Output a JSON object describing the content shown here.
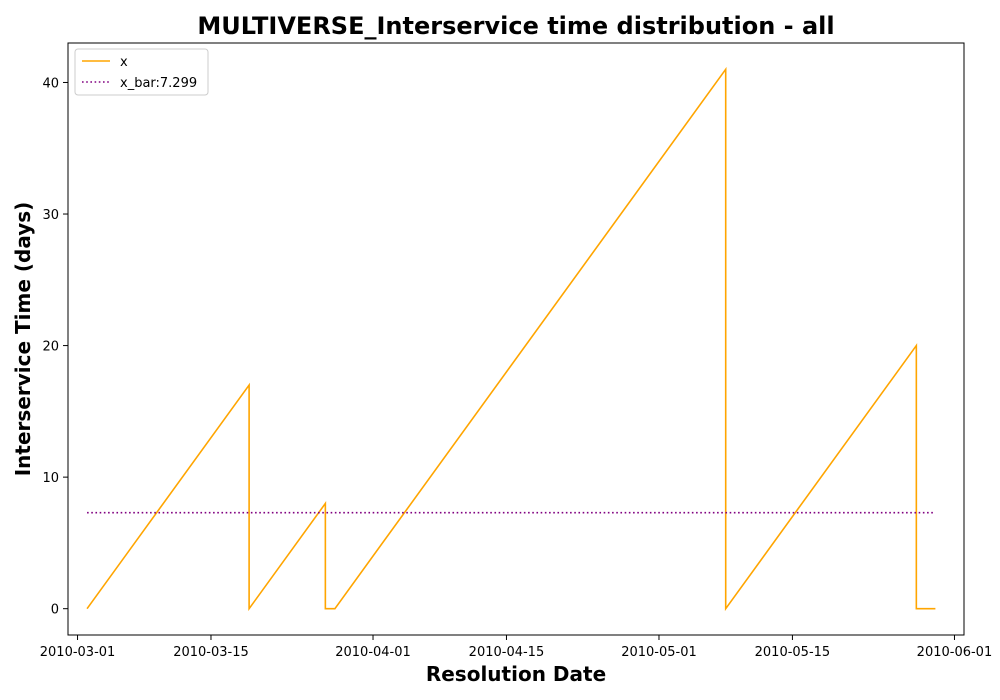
{
  "chart_data": {
    "type": "line",
    "title": "MULTIVERSE_Interservice time distribution - all",
    "xlabel": "Resolution Date",
    "ylabel": "Interservice Time (days)",
    "x_axis_type": "date",
    "xlim": [
      "2010-02-28",
      "2010-06-02"
    ],
    "ylim": [
      -2,
      43
    ],
    "x_ticks": [
      "2010-03-01",
      "2010-03-15",
      "2010-04-01",
      "2010-04-15",
      "2010-05-01",
      "2010-05-15",
      "2010-06-01"
    ],
    "y_ticks": [
      0,
      10,
      20,
      30,
      40
    ],
    "grid": false,
    "legend_position": "upper-left",
    "series": [
      {
        "name": "x",
        "color": "#FFA500",
        "style": "solid",
        "points": [
          {
            "x": "2010-03-02",
            "y": 0
          },
          {
            "x": "2010-03-19",
            "y": 17
          },
          {
            "x": "2010-03-19",
            "y": 0
          },
          {
            "x": "2010-03-27",
            "y": 8
          },
          {
            "x": "2010-03-27",
            "y": 0
          },
          {
            "x": "2010-03-28",
            "y": 0
          },
          {
            "x": "2010-05-08",
            "y": 41
          },
          {
            "x": "2010-05-08",
            "y": 0
          },
          {
            "x": "2010-05-28",
            "y": 20
          },
          {
            "x": "2010-05-28",
            "y": 0
          },
          {
            "x": "2010-05-30",
            "y": 0
          }
        ]
      },
      {
        "name": "x_bar:7.299",
        "color": "#800080",
        "style": "dotted",
        "points": [
          {
            "x": "2010-03-02",
            "y": 7.299
          },
          {
            "x": "2010-05-30",
            "y": 7.299
          }
        ]
      }
    ]
  }
}
